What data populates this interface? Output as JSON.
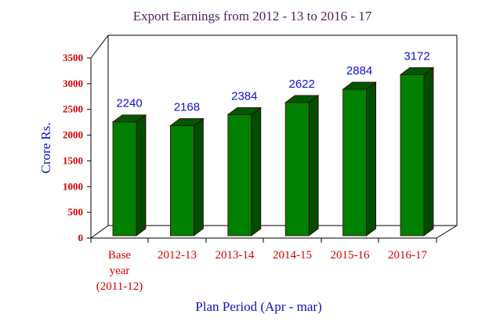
{
  "chart_data": {
    "type": "bar",
    "title": "Export Earnings from 2012 - 13 to 2016 - 17",
    "xlabel": "Plan Period (Apr - mar)",
    "ylabel": "Crore Rs.",
    "ylim": [
      0,
      3500
    ],
    "yticks": [
      "3500",
      "3000",
      "2500",
      "2000",
      "1500",
      "1000",
      "500",
      "0"
    ],
    "categories": [
      [
        "Base",
        "year",
        "(2011-12)"
      ],
      [
        "2012-13"
      ],
      [
        "2013-14"
      ],
      [
        "2014-15"
      ],
      [
        "2015-16"
      ],
      [
        "2016-17"
      ]
    ],
    "values": [
      2240,
      2168,
      2384,
      2622,
      2884,
      3172
    ],
    "value_labels": [
      "2240",
      "2168",
      "2384",
      "2622",
      "2884",
      "3172"
    ],
    "grid": false,
    "legend": "none",
    "colors": {
      "bar_front": "#008000",
      "bar_side": "#004d00",
      "bar_top": "#005800",
      "bar_edge": "#3a0000",
      "value_label": "#1010d8",
      "tick_label": "#d40000",
      "axis_title": "#1010c8",
      "title": "#4b1f5e"
    }
  }
}
